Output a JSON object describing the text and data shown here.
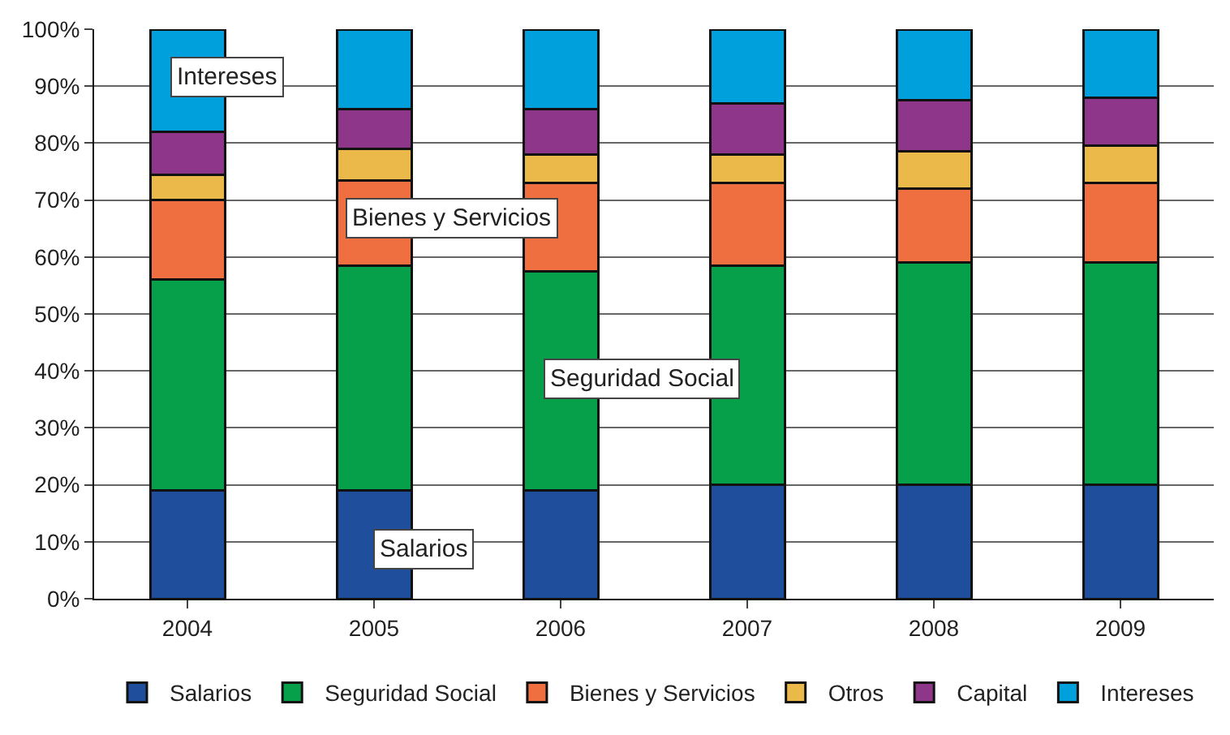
{
  "chart_data": {
    "type": "bar",
    "stacked": true,
    "categories": [
      "2004",
      "2005",
      "2006",
      "2007",
      "2008",
      "2009"
    ],
    "series": [
      {
        "name": "Salarios",
        "color": "#1f4e9c",
        "values": [
          19,
          19,
          19,
          20,
          20,
          20
        ]
      },
      {
        "name": "Seguridad Social",
        "color": "#06a04a",
        "values": [
          37,
          39.5,
          38.5,
          38.5,
          39,
          39
        ]
      },
      {
        "name": "Bienes y Servicios",
        "color": "#ef6f41",
        "values": [
          14,
          15,
          15.5,
          14.5,
          13,
          14
        ]
      },
      {
        "name": "Otros",
        "color": "#ebb94a",
        "values": [
          4.5,
          5.5,
          5,
          5,
          6.5,
          6.5
        ]
      },
      {
        "name": "Capital",
        "color": "#8e368a",
        "values": [
          7.5,
          7,
          8,
          9,
          9,
          8.5
        ]
      },
      {
        "name": "Intereses",
        "color": "#00a0dc",
        "values": [
          18,
          14,
          14,
          13,
          12.5,
          12
        ]
      }
    ],
    "ylim": [
      0,
      100
    ],
    "yticks": [
      {
        "value": 0,
        "label": "0%"
      },
      {
        "value": 10,
        "label": "10%"
      },
      {
        "value": 20,
        "label": "20%"
      },
      {
        "value": 30,
        "label": "30%"
      },
      {
        "value": 40,
        "label": "40%"
      },
      {
        "value": 50,
        "label": "50%"
      },
      {
        "value": 60,
        "label": "60%"
      },
      {
        "value": 70,
        "label": "70%"
      },
      {
        "value": 80,
        "label": "80%"
      },
      {
        "value": 90,
        "label": "90%"
      },
      {
        "value": 100,
        "label": "100%"
      }
    ],
    "grid": "y",
    "legend": "bottom",
    "annotations": [
      "Intereses",
      "Bienes y Servicios",
      "Seguridad Social",
      "Salarios"
    ]
  }
}
